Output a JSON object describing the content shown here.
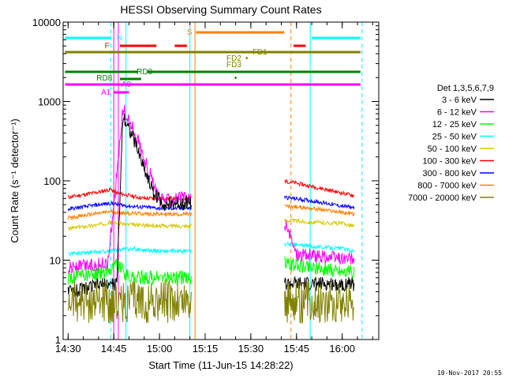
{
  "chart_data": {
    "type": "line",
    "title": "HESSI Observing Summary Count Rates",
    "xlabel": "Start Time (11-Jun-15 14:28:22)",
    "ylabel": "Count Rate (s⁻¹ detector⁻¹)",
    "y_scale": "log",
    "ylim": [
      1,
      10000
    ],
    "xlim": [
      "14:28:22",
      "16:12:00"
    ],
    "x_ticks": [
      "14:30",
      "14:45",
      "15:00",
      "15:15",
      "15:30",
      "15:45",
      "16:00"
    ],
    "y_ticks": [
      "1",
      "10",
      "100",
      "1000",
      "10000"
    ],
    "timestamp": "10-Nov-2017 20:55",
    "legend": {
      "placement": "right",
      "header": "Det 1,3,5,6,7,9",
      "entries": [
        {
          "label": "3 - 6 keV",
          "color": "#000000"
        },
        {
          "label": "6 - 12 keV",
          "color": "#ff00ff"
        },
        {
          "label": "12 - 25 keV",
          "color": "#00ff00"
        },
        {
          "label": "25 - 50 keV",
          "color": "#00ffff"
        },
        {
          "label": "50 - 100 keV",
          "color": "#d4c800"
        },
        {
          "label": "100 - 300 keV",
          "color": "#ff0000"
        },
        {
          "label": "300 - 800 keV",
          "color": "#0000ff"
        },
        {
          "label": "800 - 7000 keV",
          "color": "#ff8000"
        },
        {
          "label": "7000 - 20000 keV",
          "color": "#808000"
        }
      ]
    },
    "flags": [
      {
        "label": "N",
        "color": "#00ffff"
      },
      {
        "label": "F",
        "color": "#ff0000"
      },
      {
        "label": "S",
        "color": "#ff8000"
      },
      {
        "label": "FD1",
        "color": "#808000"
      },
      {
        "label": "FD2",
        "color": "#808000"
      },
      {
        "label": "FD3",
        "color": "#808000"
      },
      {
        "label": "RD0",
        "color": "#008000"
      },
      {
        "label": "RD8",
        "color": "#008000"
      },
      {
        "label": "A0",
        "color": "#ff00ff"
      },
      {
        "label": "A1",
        "color": "#ff00ff"
      }
    ],
    "series": [
      {
        "color": "#ff0000",
        "level": "100 - 300 keV",
        "x": [
          "14:30",
          "14:40",
          "14:44",
          "14:46",
          "14:55",
          "15:10",
          "15:41",
          "15:50",
          "16:00",
          "16:04"
        ],
        "values": [
          62,
          72,
          78,
          70,
          60,
          60,
          100,
          85,
          70,
          65
        ]
      },
      {
        "color": "#0000ff",
        "level": "300 - 800 keV",
        "x": [
          "14:30",
          "14:40",
          "14:44",
          "14:50",
          "15:00",
          "15:10",
          "15:41",
          "15:50",
          "16:00",
          "16:04"
        ],
        "values": [
          44,
          50,
          52,
          48,
          45,
          45,
          62,
          56,
          48,
          46
        ]
      },
      {
        "color": "#ff8000",
        "level": "800 - 7000 keV",
        "x": [
          "14:30",
          "14:40",
          "14:44",
          "14:50",
          "15:00",
          "15:10",
          "15:41",
          "15:50",
          "16:00",
          "16:04"
        ],
        "values": [
          34,
          39,
          41,
          39,
          38,
          38,
          48,
          45,
          40,
          38
        ]
      },
      {
        "color": "#d4c800",
        "level": "50 - 100 keV",
        "x": [
          "14:30",
          "14:40",
          "14:44",
          "14:50",
          "15:00",
          "15:10",
          "15:41",
          "15:50",
          "16:00",
          "16:04"
        ],
        "values": [
          25,
          28,
          30,
          28,
          27,
          27,
          32,
          30,
          29,
          27
        ]
      },
      {
        "color": "#00ffff",
        "level": "25 - 50 keV",
        "x": [
          "14:30",
          "14:44",
          "14:50",
          "15:00",
          "15:10",
          "15:41",
          "15:50",
          "16:00",
          "16:04"
        ],
        "values": [
          12,
          13,
          14,
          13,
          13,
          16,
          15,
          14,
          13
        ]
      },
      {
        "color": "#ff00ff",
        "level": "6 - 12 keV",
        "x": [
          "14:30",
          "14:43",
          "14:46",
          "14:48",
          "14:52",
          "14:56",
          "15:00",
          "15:05",
          "15:10",
          "15:41",
          "15:45",
          "16:04"
        ],
        "values": [
          8,
          9,
          120,
          800,
          400,
          150,
          55,
          60,
          60,
          30,
          12,
          10
        ]
      },
      {
        "color": "#00ff00",
        "level": "12 - 25 keV",
        "x": [
          "14:30",
          "14:42",
          "14:46",
          "14:50",
          "15:10",
          "15:41",
          "16:04"
        ],
        "values": [
          6,
          7,
          9,
          6,
          6,
          9,
          7
        ]
      },
      {
        "color": "#000000",
        "level": "3 - 6 keV",
        "x": [
          "14:30",
          "14:43",
          "14:46",
          "14:48",
          "14:52",
          "14:58",
          "15:02",
          "15:10",
          "15:41",
          "16:04"
        ],
        "values": [
          4,
          5,
          5,
          700,
          300,
          70,
          50,
          55,
          5,
          5
        ]
      },
      {
        "color": "#808000",
        "level": "7000 - 20000 keV",
        "x": [
          "14:30",
          "15:10",
          "15:41",
          "16:04"
        ],
        "values": [
          3,
          3,
          3,
          3
        ]
      }
    ]
  }
}
